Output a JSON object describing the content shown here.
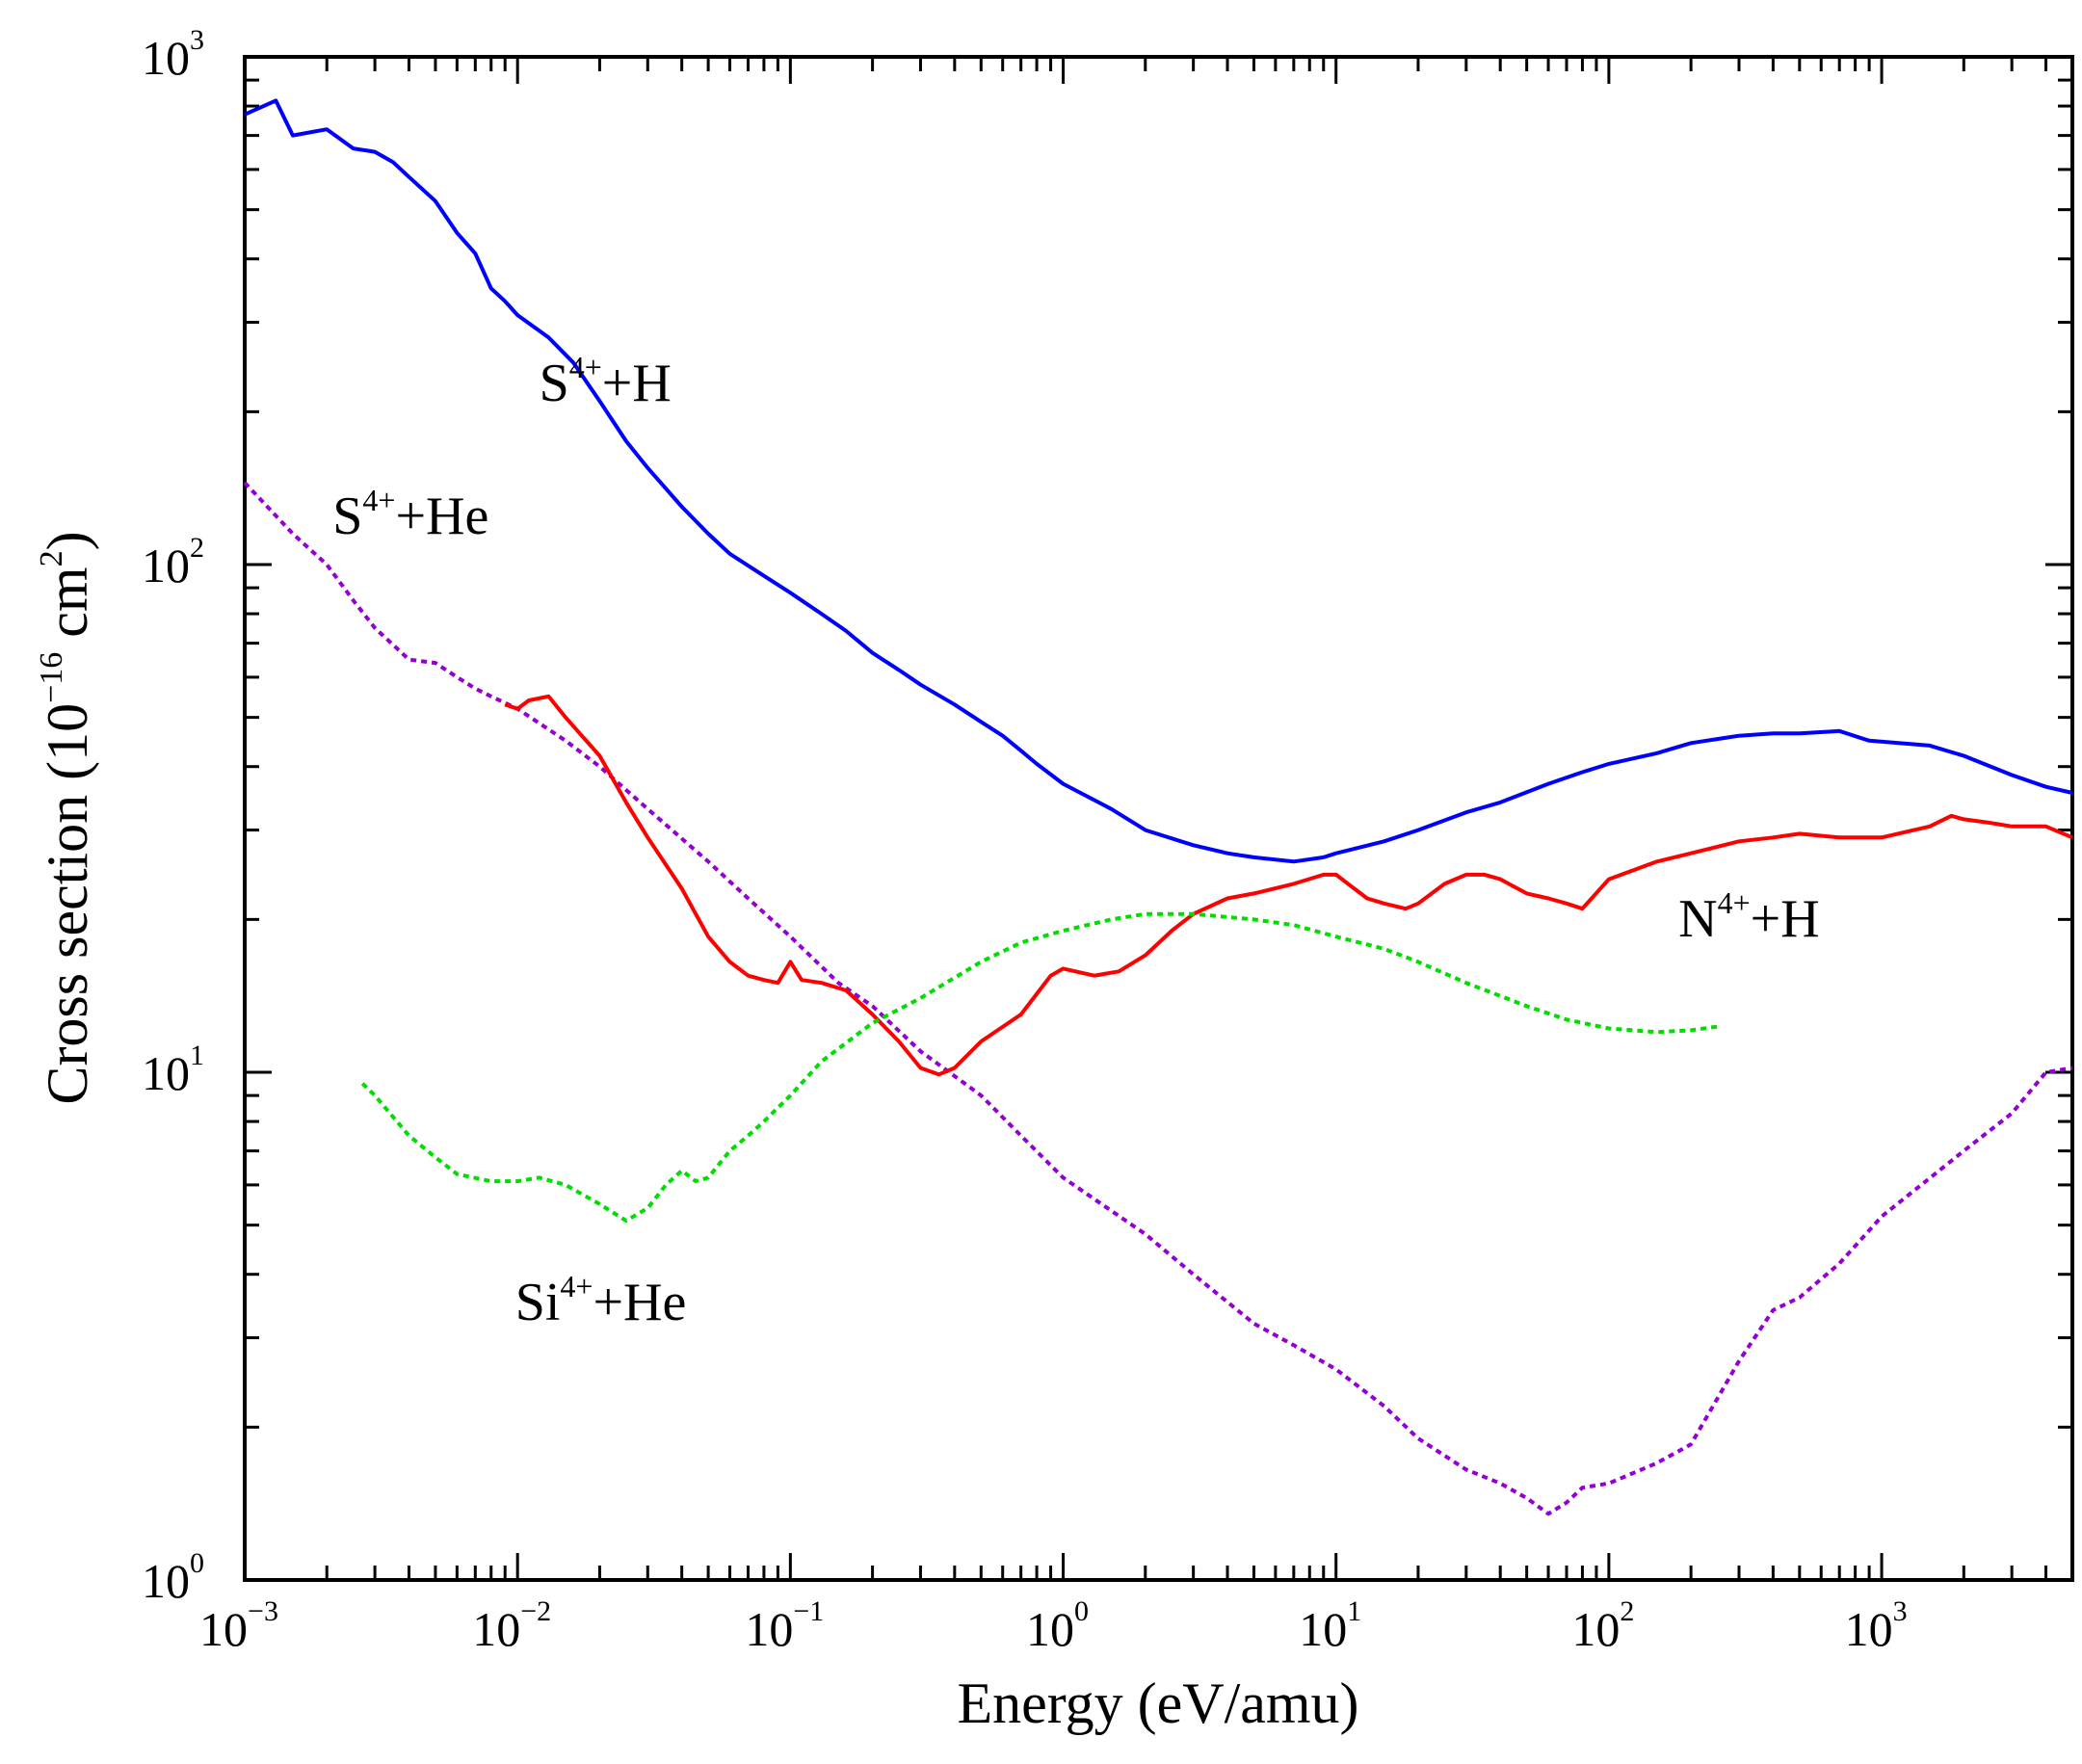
{
  "chart_data": {
    "type": "line",
    "xscale": "log",
    "yscale": "log",
    "xlim": [
      0.001,
      5000
    ],
    "ylim": [
      1,
      1000
    ],
    "xlabel": "Energy (eV/amu)",
    "ylabel": {
      "prefix": "Cross section (10",
      "exp": "−16",
      "unit": " cm",
      "unit_exp": "2",
      "suffix": ")"
    },
    "x_ticks": [
      {
        "base": "10",
        "exp": "−3",
        "value": 0.001
      },
      {
        "base": "10",
        "exp": "−2",
        "value": 0.01
      },
      {
        "base": "10",
        "exp": "−1",
        "value": 0.1
      },
      {
        "base": "10",
        "exp": "0",
        "value": 1
      },
      {
        "base": "10",
        "exp": "1",
        "value": 10
      },
      {
        "base": "10",
        "exp": "2",
        "value": 100
      },
      {
        "base": "10",
        "exp": "3",
        "value": 1000
      }
    ],
    "y_ticks": [
      {
        "base": "10",
        "exp": "0",
        "value": 1
      },
      {
        "base": "10",
        "exp": "1",
        "value": 10
      },
      {
        "base": "10",
        "exp": "2",
        "value": 100
      },
      {
        "base": "10",
        "exp": "3",
        "value": 1000
      }
    ],
    "series": [
      {
        "name": "S4+ + H",
        "label_base": "S",
        "label_sup": "4+",
        "label_rest": "+H",
        "label_at": [
          0.012,
          210
        ],
        "color": "#0000ff",
        "dash": "solid",
        "points": [
          [
            0.001,
            770
          ],
          [
            0.0013,
            820
          ],
          [
            0.0015,
            700
          ],
          [
            0.002,
            720
          ],
          [
            0.0025,
            660
          ],
          [
            0.003,
            650
          ],
          [
            0.0035,
            620
          ],
          [
            0.004,
            580
          ],
          [
            0.005,
            520
          ],
          [
            0.006,
            450
          ],
          [
            0.007,
            410
          ],
          [
            0.008,
            350
          ],
          [
            0.009,
            330
          ],
          [
            0.01,
            310
          ],
          [
            0.013,
            280
          ],
          [
            0.016,
            250
          ],
          [
            0.02,
            210
          ],
          [
            0.025,
            175
          ],
          [
            0.03,
            155
          ],
          [
            0.04,
            130
          ],
          [
            0.05,
            115
          ],
          [
            0.06,
            105
          ],
          [
            0.08,
            95
          ],
          [
            0.1,
            88
          ],
          [
            0.13,
            80
          ],
          [
            0.16,
            74
          ],
          [
            0.2,
            67
          ],
          [
            0.25,
            62
          ],
          [
            0.3,
            58
          ],
          [
            0.4,
            53
          ],
          [
            0.5,
            49
          ],
          [
            0.6,
            46
          ],
          [
            0.7,
            43
          ],
          [
            0.8,
            40.5
          ],
          [
            1,
            37
          ],
          [
            1.5,
            33
          ],
          [
            2,
            30
          ],
          [
            3,
            28
          ],
          [
            4,
            27
          ],
          [
            5,
            26.5
          ],
          [
            7,
            26
          ],
          [
            9,
            26.5
          ],
          [
            10,
            27
          ],
          [
            15,
            28.5
          ],
          [
            20,
            30
          ],
          [
            30,
            32.5
          ],
          [
            40,
            34
          ],
          [
            60,
            37
          ],
          [
            80,
            39
          ],
          [
            100,
            40.5
          ],
          [
            150,
            42.5
          ],
          [
            200,
            44.5
          ],
          [
            300,
            46
          ],
          [
            400,
            46.5
          ],
          [
            500,
            46.5
          ],
          [
            700,
            47
          ],
          [
            900,
            45
          ],
          [
            1500,
            44
          ],
          [
            2000,
            42
          ],
          [
            3000,
            38.5
          ],
          [
            4000,
            36.5
          ],
          [
            5000,
            35.5
          ]
        ]
      },
      {
        "name": "S4+ + He",
        "label_base": "S",
        "label_sup": "4+",
        "label_rest": "+He",
        "label_at": [
          0.0021,
          115
        ],
        "color": "#9400d3",
        "dash": "dotted",
        "points": [
          [
            0.001,
            145
          ],
          [
            0.0015,
            115
          ],
          [
            0.002,
            100
          ],
          [
            0.0025,
            85
          ],
          [
            0.003,
            75
          ],
          [
            0.004,
            65
          ],
          [
            0.005,
            64
          ],
          [
            0.006,
            60
          ],
          [
            0.007,
            57
          ],
          [
            0.008,
            55
          ],
          [
            0.01,
            52
          ],
          [
            0.015,
            45
          ],
          [
            0.02,
            40
          ],
          [
            0.03,
            33
          ],
          [
            0.05,
            26
          ],
          [
            0.07,
            22
          ],
          [
            0.1,
            18.5
          ],
          [
            0.15,
            15
          ],
          [
            0.2,
            13.5
          ],
          [
            0.3,
            11
          ],
          [
            0.5,
            9
          ],
          [
            0.7,
            7.5
          ],
          [
            1,
            6.2
          ],
          [
            2,
            4.8
          ],
          [
            3,
            4
          ],
          [
            5,
            3.2
          ],
          [
            7,
            2.9
          ],
          [
            10,
            2.6
          ],
          [
            15,
            2.2
          ],
          [
            20,
            1.9
          ],
          [
            30,
            1.65
          ],
          [
            40,
            1.55
          ],
          [
            50,
            1.45
          ],
          [
            60,
            1.35
          ],
          [
            70,
            1.42
          ],
          [
            80,
            1.52
          ],
          [
            100,
            1.55
          ],
          [
            150,
            1.7
          ],
          [
            200,
            1.85
          ],
          [
            300,
            2.7
          ],
          [
            400,
            3.4
          ],
          [
            500,
            3.6
          ],
          [
            700,
            4.2
          ],
          [
            1000,
            5.2
          ],
          [
            2000,
            7
          ],
          [
            3000,
            8.3
          ],
          [
            4000,
            10
          ],
          [
            5000,
            10.2
          ]
        ]
      },
      {
        "name": "N4+ + H",
        "label_base": "N",
        "label_sup": "4+",
        "label_rest": "+H",
        "label_at": [
          180,
          18.5
        ],
        "color": "#ff0000",
        "dash": "solid",
        "points": [
          [
            0.009,
            53
          ],
          [
            0.01,
            52
          ],
          [
            0.011,
            54
          ],
          [
            0.013,
            55
          ],
          [
            0.015,
            50
          ],
          [
            0.02,
            42
          ],
          [
            0.025,
            34
          ],
          [
            0.03,
            29
          ],
          [
            0.04,
            23
          ],
          [
            0.05,
            18.5
          ],
          [
            0.06,
            16.5
          ],
          [
            0.07,
            15.5
          ],
          [
            0.08,
            15.2
          ],
          [
            0.09,
            15
          ],
          [
            0.1,
            16.5
          ],
          [
            0.11,
            15.2
          ],
          [
            0.13,
            15
          ],
          [
            0.16,
            14.5
          ],
          [
            0.2,
            13
          ],
          [
            0.25,
            11.5
          ],
          [
            0.3,
            10.2
          ],
          [
            0.35,
            9.9
          ],
          [
            0.4,
            10.2
          ],
          [
            0.5,
            11.5
          ],
          [
            0.7,
            13
          ],
          [
            0.9,
            15.5
          ],
          [
            1,
            16
          ],
          [
            1.3,
            15.5
          ],
          [
            1.6,
            15.8
          ],
          [
            2,
            17
          ],
          [
            2.5,
            19
          ],
          [
            3,
            20.5
          ],
          [
            4,
            22
          ],
          [
            5,
            22.5
          ],
          [
            7,
            23.5
          ],
          [
            9,
            24.5
          ],
          [
            10,
            24.5
          ],
          [
            13,
            22
          ],
          [
            15,
            21.5
          ],
          [
            18,
            21
          ],
          [
            20,
            21.5
          ],
          [
            25,
            23.5
          ],
          [
            30,
            24.5
          ],
          [
            35,
            24.5
          ],
          [
            40,
            24
          ],
          [
            50,
            22.5
          ],
          [
            60,
            22
          ],
          [
            70,
            21.5
          ],
          [
            80,
            21
          ],
          [
            100,
            24
          ],
          [
            150,
            26
          ],
          [
            200,
            27
          ],
          [
            300,
            28.5
          ],
          [
            400,
            29
          ],
          [
            500,
            29.5
          ],
          [
            700,
            29
          ],
          [
            1000,
            29
          ],
          [
            1500,
            30.5
          ],
          [
            1800,
            32
          ],
          [
            2000,
            31.5
          ],
          [
            2500,
            31
          ],
          [
            3000,
            30.5
          ],
          [
            4000,
            30.5
          ],
          [
            5000,
            29
          ]
        ]
      },
      {
        "name": "Si4+ + He",
        "label_base": "Si",
        "label_sup": "4+",
        "label_rest": "+He",
        "label_at": [
          0.0098,
          3.25
        ],
        "color": "#00dd00",
        "dash": "dotted",
        "points": [
          [
            0.0027,
            9.5
          ],
          [
            0.003,
            9
          ],
          [
            0.004,
            7.5
          ],
          [
            0.005,
            6.8
          ],
          [
            0.006,
            6.3
          ],
          [
            0.008,
            6.1
          ],
          [
            0.01,
            6.1
          ],
          [
            0.012,
            6.2
          ],
          [
            0.015,
            6
          ],
          [
            0.02,
            5.5
          ],
          [
            0.025,
            5.1
          ],
          [
            0.03,
            5.4
          ],
          [
            0.035,
            6
          ],
          [
            0.04,
            6.4
          ],
          [
            0.045,
            6.1
          ],
          [
            0.05,
            6.2
          ],
          [
            0.06,
            7
          ],
          [
            0.07,
            7.5
          ],
          [
            0.08,
            8
          ],
          [
            0.1,
            9
          ],
          [
            0.13,
            10.5
          ],
          [
            0.2,
            12.5
          ],
          [
            0.3,
            14
          ],
          [
            0.5,
            16.5
          ],
          [
            0.7,
            18
          ],
          [
            1,
            19
          ],
          [
            1.5,
            20
          ],
          [
            2,
            20.5
          ],
          [
            3,
            20.5
          ],
          [
            5,
            20
          ],
          [
            7,
            19.5
          ],
          [
            10,
            18.5
          ],
          [
            15,
            17.5
          ],
          [
            20,
            16.5
          ],
          [
            30,
            15
          ],
          [
            50,
            13.5
          ],
          [
            70,
            12.7
          ],
          [
            100,
            12.2
          ],
          [
            150,
            12
          ],
          [
            200,
            12.1
          ],
          [
            250,
            12.3
          ]
        ]
      }
    ]
  }
}
